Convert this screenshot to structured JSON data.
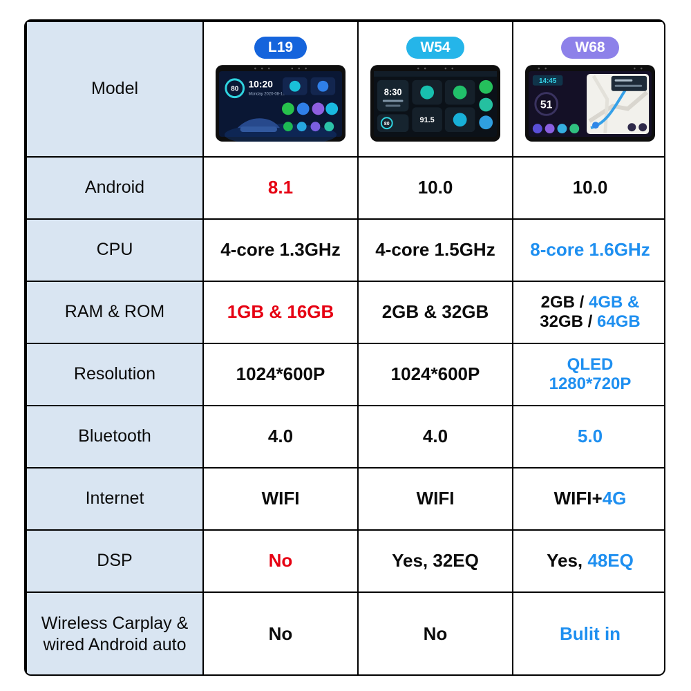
{
  "colors": {
    "label_bg": "#d9e5f2",
    "border": "#000000",
    "text": "#0b0b0b",
    "red": "#e60012",
    "blue": "#1e8ff0",
    "badge_l19": "#1564dc",
    "badge_w54": "#25b5e9",
    "badge_w68": "#8d81e9"
  },
  "model_row_label": "Model",
  "products": [
    {
      "id": "l19",
      "badge": "L19"
    },
    {
      "id": "w54",
      "badge": "W54"
    },
    {
      "id": "w68",
      "badge": "W68"
    }
  ],
  "rows": [
    {
      "label": "Android",
      "cells": [
        [
          {
            "t": "8.1",
            "c": "red"
          }
        ],
        [
          {
            "t": "10.0"
          }
        ],
        [
          {
            "t": "10.0"
          }
        ]
      ]
    },
    {
      "label": "CPU",
      "cells": [
        [
          {
            "t": "4-core 1.3GHz"
          }
        ],
        [
          {
            "t": "4-core 1.5GHz"
          }
        ],
        [
          {
            "t": "8-core 1.6GHz",
            "c": "blue"
          }
        ]
      ]
    },
    {
      "label": "RAM & ROM",
      "cells": [
        [
          {
            "t": "1GB & 16GB",
            "c": "red"
          }
        ],
        [
          {
            "t": "2GB & 32GB"
          }
        ],
        [
          {
            "t": "2GB / "
          },
          {
            "t": "4GB &",
            "c": "blue"
          },
          {
            "br": true
          },
          {
            "t": "32GB / "
          },
          {
            "t": "64GB",
            "c": "blue"
          }
        ]
      ]
    },
    {
      "label": "Resolution",
      "cells": [
        [
          {
            "t": "1024*600P"
          }
        ],
        [
          {
            "t": "1024*600P"
          }
        ],
        [
          {
            "t": "QLED",
            "c": "blue"
          },
          {
            "br": true
          },
          {
            "t": "1280*720P",
            "c": "blue"
          }
        ]
      ]
    },
    {
      "label": "Bluetooth",
      "cells": [
        [
          {
            "t": "4.0"
          }
        ],
        [
          {
            "t": "4.0"
          }
        ],
        [
          {
            "t": "5.0",
            "c": "blue"
          }
        ]
      ]
    },
    {
      "label": "Internet",
      "cells": [
        [
          {
            "t": "WIFI"
          }
        ],
        [
          {
            "t": "WIFI"
          }
        ],
        [
          {
            "t": "WIFI+"
          },
          {
            "t": "4G",
            "c": "blue"
          }
        ]
      ]
    },
    {
      "label": "DSP",
      "cells": [
        [
          {
            "t": "No",
            "c": "red"
          }
        ],
        [
          {
            "t": "Yes, 32EQ"
          }
        ],
        [
          {
            "t": "Yes, "
          },
          {
            "t": "48EQ",
            "c": "blue"
          }
        ]
      ]
    },
    {
      "label": "Wireless Carplay & wired Android auto",
      "cells": [
        [
          {
            "t": "No"
          }
        ],
        [
          {
            "t": "No"
          }
        ],
        [
          {
            "t": "Bulit in",
            "c": "blue"
          }
        ]
      ]
    }
  ],
  "device_screens": {
    "l19": {
      "time": "10:20",
      "speed": "80",
      "date": "Monday  2020-08-19"
    },
    "w54": {
      "time": "8:30",
      "fm": "91.5",
      "speed": "80"
    },
    "w68": {
      "time": "14:45",
      "speed": "51"
    }
  }
}
